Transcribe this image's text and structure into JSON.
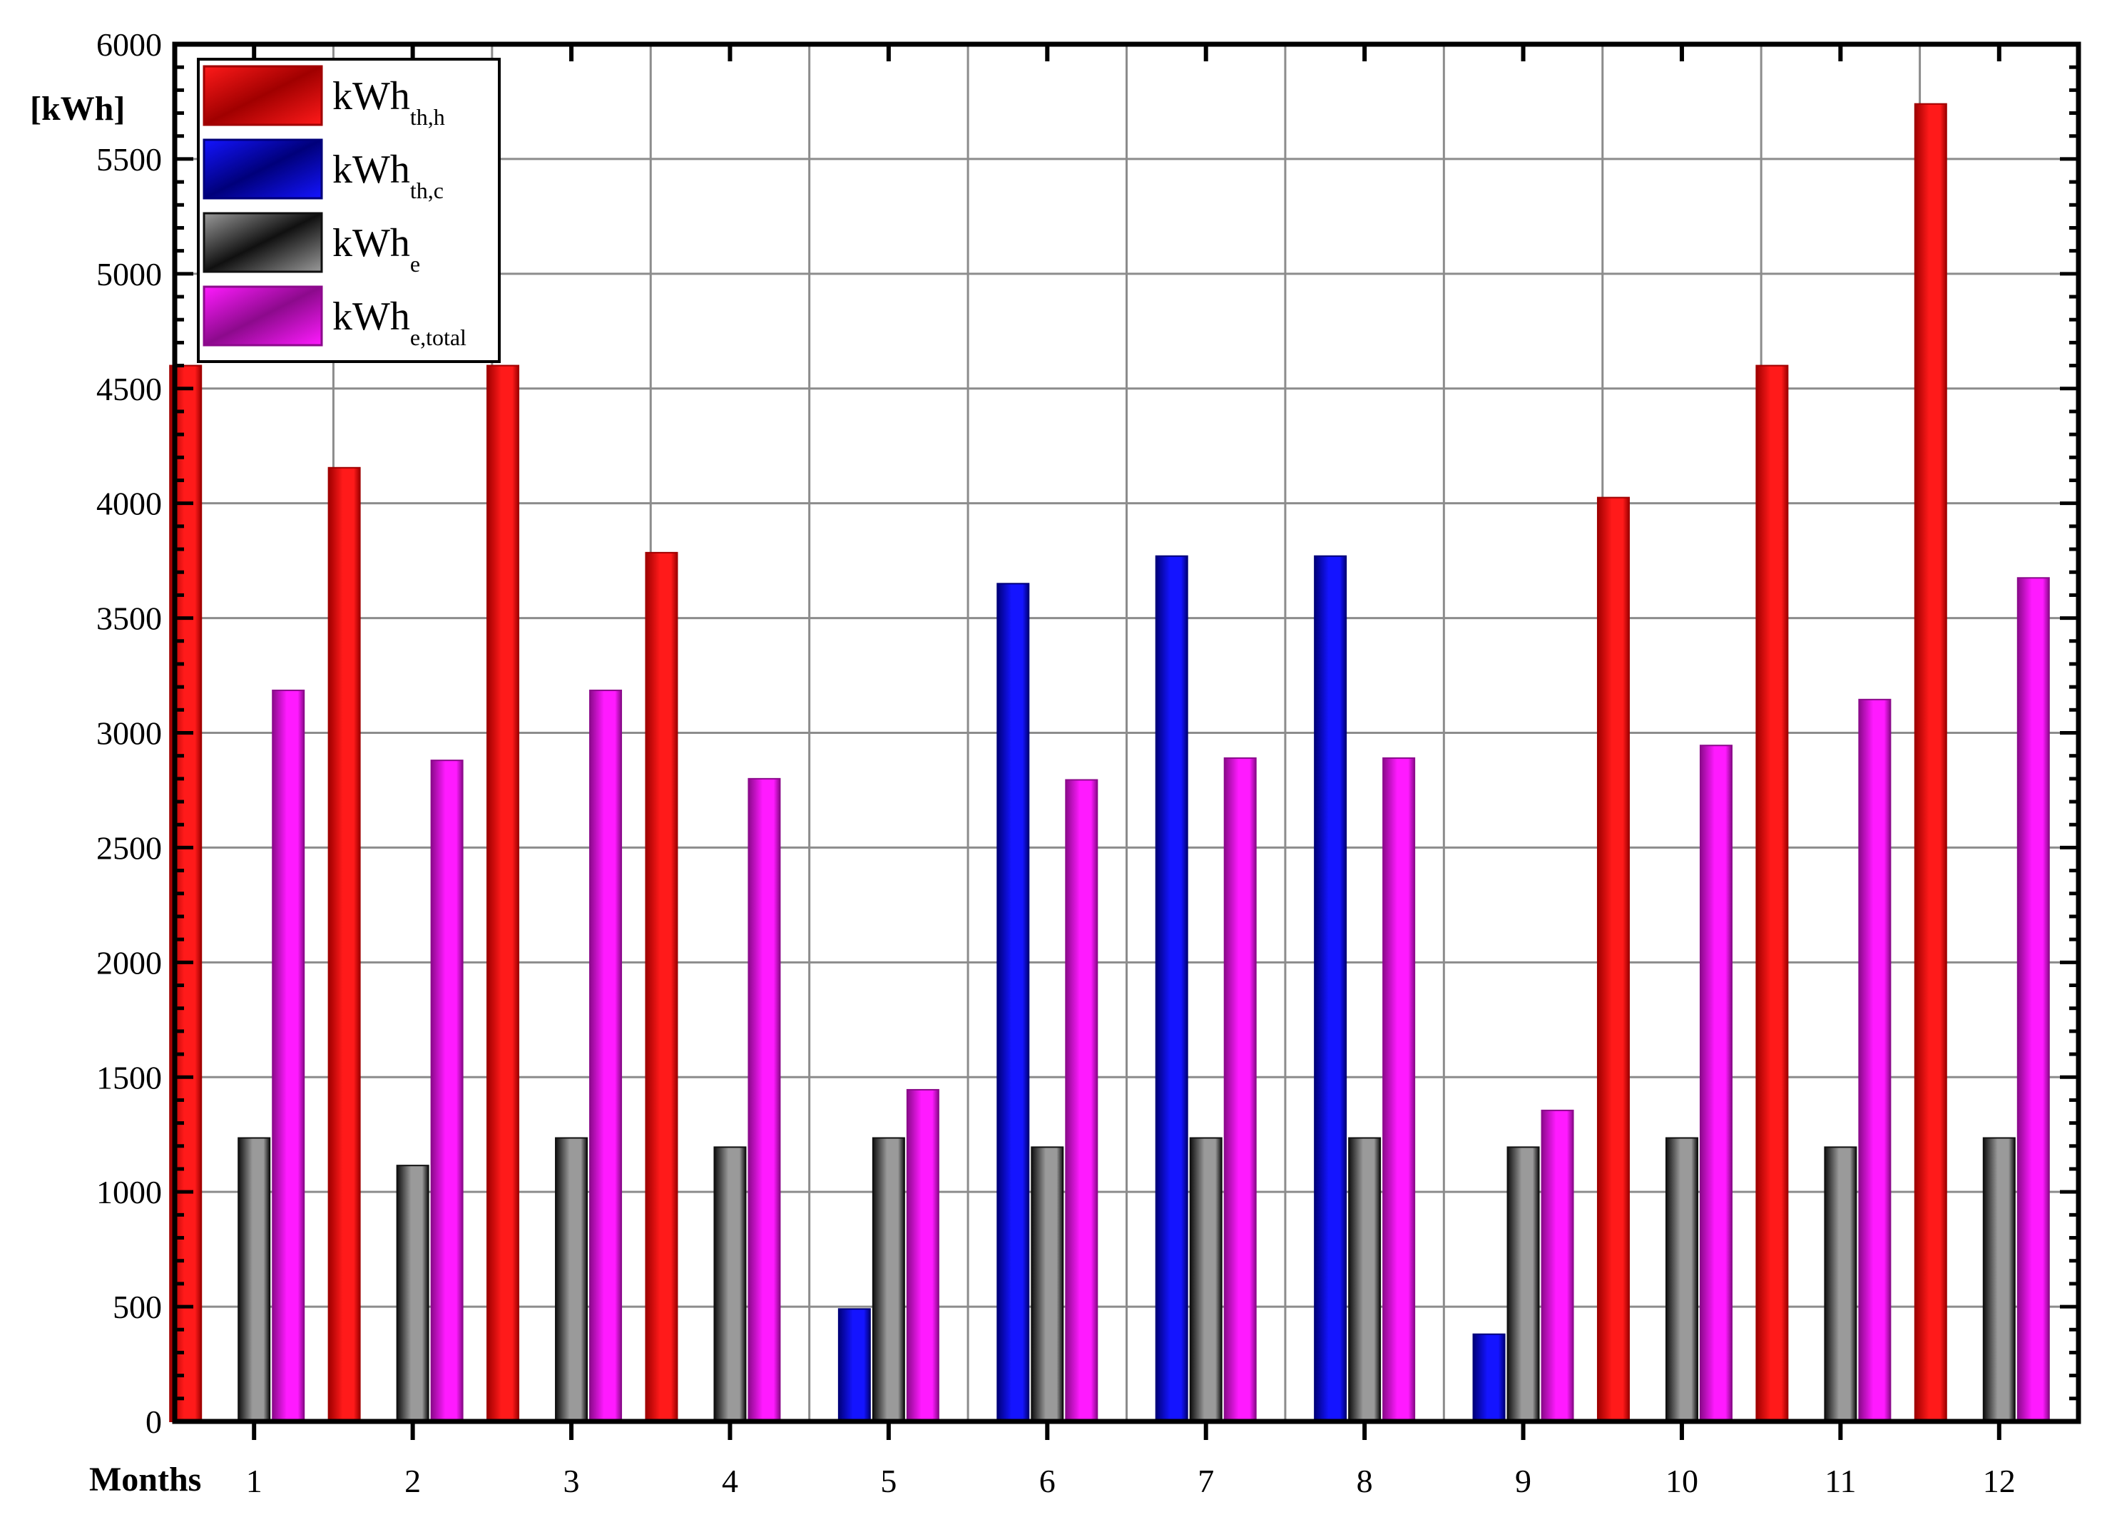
{
  "chart_data": {
    "type": "bar",
    "title": "",
    "xlabel": "Months",
    "ylabel": "[kWh]",
    "ylim": [
      0,
      6000
    ],
    "ytick_step": 500,
    "yminor_step": 100,
    "grid": true,
    "legend_position": "top-left",
    "categories": [
      "1",
      "2",
      "3",
      "4",
      "5",
      "6",
      "7",
      "8",
      "9",
      "10",
      "11",
      "12"
    ],
    "series": [
      {
        "name": "kWh",
        "subscript": "th,h",
        "color": "#ff1a1a",
        "color_dark": "#a00000",
        "values": [
          4600,
          4155,
          4600,
          3785,
          0,
          0,
          0,
          0,
          0,
          4025,
          4600,
          5740
        ]
      },
      {
        "name": "kWh",
        "subscript": "th,c",
        "color": "#1414ff",
        "color_dark": "#00007a",
        "values": [
          0,
          0,
          0,
          0,
          490,
          3650,
          3770,
          3770,
          380,
          0,
          0,
          0
        ]
      },
      {
        "name": "kWh",
        "subscript": "e",
        "color": "#9a9a9a",
        "color_dark": "#101010",
        "values": [
          1235,
          1115,
          1235,
          1195,
          1235,
          1195,
          1235,
          1235,
          1195,
          1235,
          1195,
          1235
        ]
      },
      {
        "name": "kWh",
        "subscript": "e,total",
        "color": "#ff1aff",
        "color_dark": "#8c0a8c",
        "values": [
          3185,
          2880,
          3185,
          2800,
          1445,
          2795,
          2890,
          2890,
          1355,
          2945,
          3145,
          3675
        ]
      }
    ]
  }
}
